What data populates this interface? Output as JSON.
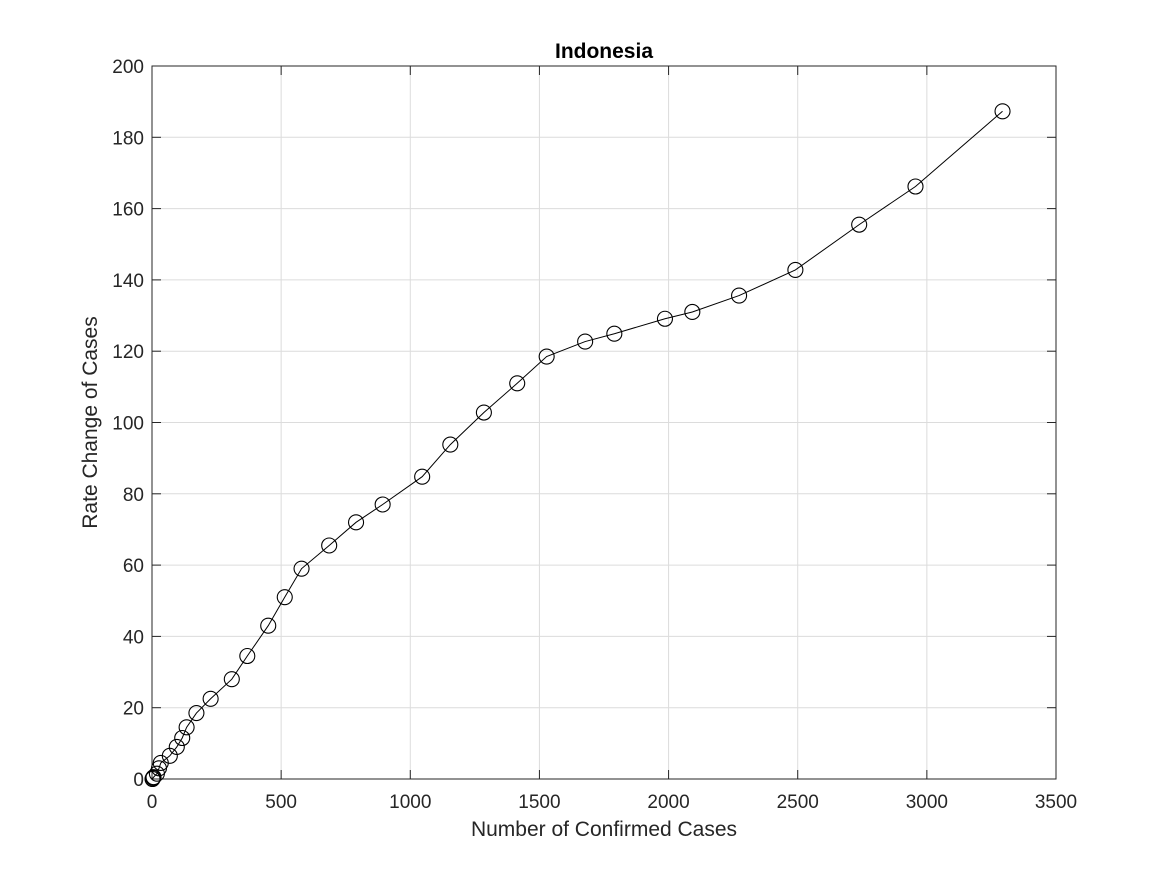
{
  "chart_data": {
    "type": "line",
    "title": "Indonesia",
    "xlabel": "Number of Confirmed Cases",
    "ylabel": "Rate Change of Cases",
    "xlim": [
      0,
      3500
    ],
    "ylim": [
      0,
      200
    ],
    "xticks": [
      0,
      500,
      1000,
      1500,
      2000,
      2500,
      3000,
      3500
    ],
    "yticks": [
      0,
      20,
      40,
      60,
      80,
      100,
      120,
      140,
      160,
      180,
      200
    ],
    "grid": true,
    "marker": "circle",
    "line_color": "#000000",
    "series": [
      {
        "name": "Indonesia",
        "x": [
          2,
          4,
          6,
          19,
          27,
          34,
          69,
          96,
          117,
          134,
          172,
          227,
          309,
          369,
          450,
          514,
          579,
          686,
          790,
          893,
          1046,
          1155,
          1285,
          1414,
          1528,
          1677,
          1790,
          1986,
          2092,
          2273,
          2491,
          2738,
          2956,
          3293
        ],
        "y": [
          0,
          0.3,
          0.5,
          1.5,
          3,
          4.5,
          6.5,
          9,
          11.5,
          14.5,
          18.5,
          22.5,
          28,
          34.5,
          43,
          51,
          59,
          65.5,
          72,
          77,
          84.8,
          93.8,
          102.8,
          111,
          118.5,
          122.7,
          124.9,
          129.1,
          131,
          135.6,
          142.8,
          155.5,
          166.2,
          187.3
        ]
      }
    ]
  }
}
